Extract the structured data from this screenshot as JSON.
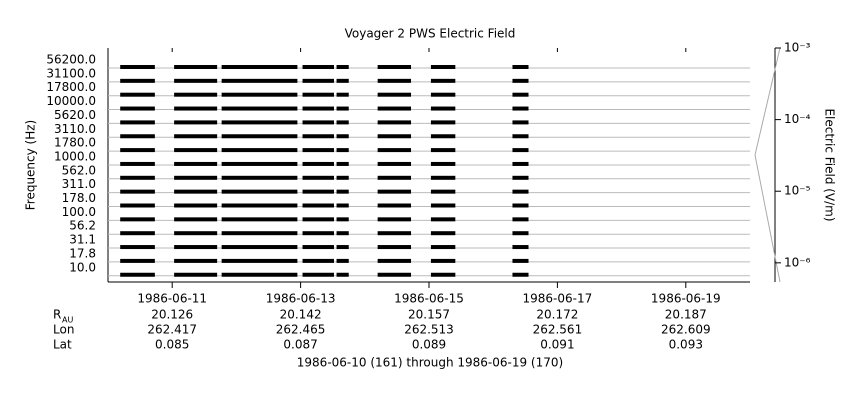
{
  "chart_data": {
    "type": "coverage",
    "title": "Voyager 2 PWS Electric Field",
    "y_label": "Frequency (Hz)",
    "y2_label": "Electric Field (V/m)",
    "channels": [
      "56200.0",
      "31100.0",
      "17800.0",
      "10000.0",
      "5620.0",
      "3110.0",
      "1780.0",
      "1000.0",
      "562.0",
      "311.0",
      "178.0",
      "100.0",
      "56.2",
      "31.1",
      "17.8",
      "10.0"
    ],
    "xlim": [
      10,
      20
    ],
    "xticks": [
      {
        "value": 11,
        "label": "1986-06-11"
      },
      {
        "value": 13,
        "label": "1986-06-13"
      },
      {
        "value": 15,
        "label": "1986-06-15"
      },
      {
        "value": 17,
        "label": "1986-06-17"
      },
      {
        "value": 19,
        "label": "1986-06-19"
      }
    ],
    "segments": [
      [
        10.19,
        10.73
      ],
      [
        11.03,
        11.7
      ],
      [
        11.77,
        12.95
      ],
      [
        13.03,
        13.52
      ],
      [
        13.56,
        13.75
      ],
      [
        14.2,
        14.72
      ],
      [
        15.03,
        15.41
      ],
      [
        16.3,
        16.55
      ]
    ],
    "color": "#000000",
    "y2scale": "log",
    "y2lim": [
      5.4e-07,
      0.001
    ],
    "y2ticks": [
      {
        "value": 1e-06,
        "label": "10⁻⁶"
      },
      {
        "value": 1e-05,
        "label": "10⁻⁵"
      },
      {
        "value": 0.0001,
        "label": "10⁻⁴"
      },
      {
        "value": 0.001,
        "label": "10⁻³"
      }
    ],
    "grid": true,
    "ephemeris": [
      {
        "label": "R",
        "sub": "AU",
        "values": [
          20.126,
          20.142,
          20.157,
          20.172,
          20.187
        ]
      },
      {
        "label": "Lon",
        "values": [
          262.417,
          262.465,
          262.513,
          262.561,
          262.609
        ]
      },
      {
        "label": "Lat",
        "values": [
          0.085,
          0.087,
          0.089,
          0.091,
          0.093
        ]
      }
    ],
    "footer": "1986-06-10 (161) through 1986-06-19 (170)"
  }
}
